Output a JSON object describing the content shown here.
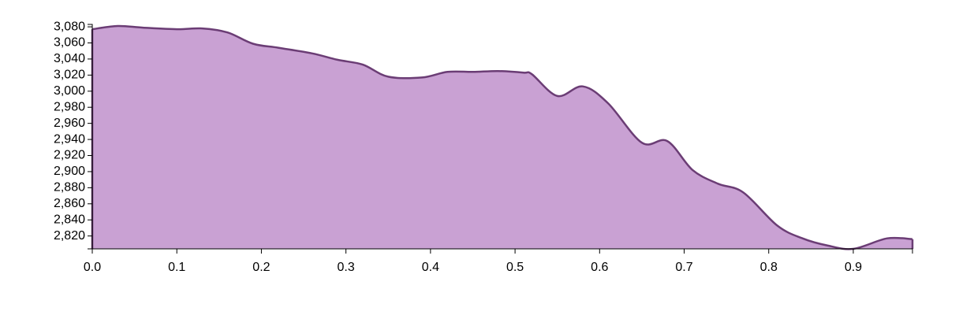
{
  "chart_data": {
    "type": "area",
    "title": "",
    "xlabel": "",
    "ylabel": "",
    "xlim": [
      0,
      0.97
    ],
    "ylim": [
      2804,
      3083
    ],
    "x_ticks": [
      0.0,
      0.1,
      0.2,
      0.3,
      0.4,
      0.5,
      0.6,
      0.7,
      0.8,
      0.9
    ],
    "x_tick_labels": [
      "0.0",
      "0.1",
      "0.2",
      "0.3",
      "0.4",
      "0.5",
      "0.6",
      "0.7",
      "0.8",
      "0.9"
    ],
    "y_ticks": [
      2820,
      2840,
      2860,
      2880,
      2900,
      2920,
      2940,
      2960,
      2980,
      3000,
      3020,
      3040,
      3060,
      3080
    ],
    "y_tick_labels": [
      "2,820",
      "2,840",
      "2,860",
      "2,880",
      "2,900",
      "2,920",
      "2,940",
      "2,960",
      "2,980",
      "3,000",
      "3,020",
      "3,040",
      "3,060",
      "3,080"
    ],
    "grid": false,
    "legend": "none",
    "colors": {
      "fill": "#c9a1d3",
      "stroke": "#6b3d75"
    },
    "series": [
      {
        "x": [
          0.0,
          0.03,
          0.06,
          0.1,
          0.13,
          0.16,
          0.19,
          0.22,
          0.26,
          0.29,
          0.32,
          0.35,
          0.39,
          0.42,
          0.45,
          0.48,
          0.51,
          0.52,
          0.55,
          0.58,
          0.61,
          0.65,
          0.68,
          0.71,
          0.74,
          0.77,
          0.81,
          0.84,
          0.87,
          0.9,
          0.94,
          0.97
        ],
        "y": [
          3077,
          3081,
          3079,
          3077,
          3078,
          3073,
          3059,
          3054,
          3047,
          3039,
          3033,
          3018,
          3017,
          3024,
          3024,
          3025,
          3023,
          3021,
          2994,
          3006,
          2985,
          2936,
          2938,
          2902,
          2885,
          2874,
          2833,
          2817,
          2808,
          2804,
          2817,
          2816
        ]
      }
    ]
  }
}
